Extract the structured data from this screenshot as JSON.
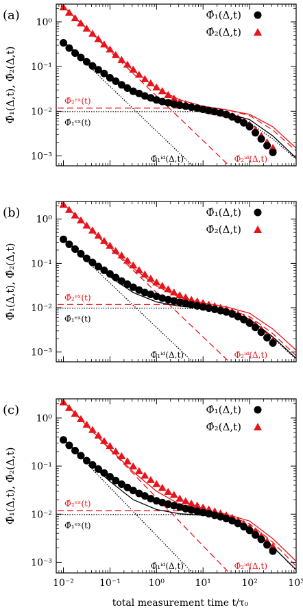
{
  "figure": {
    "xlabel": "total measurement time t/τ₀",
    "ylabel": "Φ̂₁(Δ,t),  Φ̂₂(Δ,t)",
    "xticks": [
      {
        "v": 0.01,
        "label": "10⁻²"
      },
      {
        "v": 0.1,
        "label": "10⁻¹"
      },
      {
        "v": 1,
        "label": "10⁰"
      },
      {
        "v": 10,
        "label": "10¹"
      },
      {
        "v": 100,
        "label": "10²"
      },
      {
        "v": 1000,
        "label": "10³"
      }
    ],
    "yticks": [
      {
        "v": 1,
        "label": "10⁰"
      },
      {
        "v": 0.1,
        "label": "10⁻¹"
      },
      {
        "v": 0.01,
        "label": "10⁻²"
      },
      {
        "v": 0.001,
        "label": "10⁻³"
      }
    ],
    "legend": [
      "Φ̂₁(Δ,t)",
      "Φ̂₂(Δ,t)"
    ],
    "annotations": {
      "phi2_ex": "Φ̂₂ᵉˣ(t)",
      "phi1_ex": "Φ̂₁ᵉˣ(t)",
      "phi1_id": "Φ̂₁ⁱᵈ(Δ,t)",
      "phi2_id": "Φ̂₂ⁱᵈ(Δ,t)"
    },
    "colors": {
      "series1": "#000000",
      "series2": "#e8141b"
    }
  },
  "chart_data": [
    {
      "panel_label": "(a)",
      "type": "scatter",
      "xscale": "log",
      "yscale": "log",
      "xlim": [
        0.007,
        1000
      ],
      "ylim": [
        0.0006,
        2.5
      ],
      "series": [
        {
          "name": "Φ̂₁(Δ,t)",
          "marker": "circle",
          "color": "#000000",
          "x": [
            0.01,
            0.0133,
            0.0178,
            0.0237,
            0.0316,
            0.0422,
            0.0562,
            0.075,
            0.1,
            0.133,
            0.178,
            0.237,
            0.316,
            0.422,
            0.562,
            0.75,
            1,
            1.33,
            1.78,
            2.37,
            3.16,
            4.22,
            5.62,
            7.5,
            10,
            13.3,
            17.8,
            23.7,
            31.6,
            42.2,
            56.2,
            75,
            100,
            133,
            178,
            237,
            316
          ],
          "y": [
            0.34,
            0.26,
            0.2,
            0.16,
            0.128,
            0.103,
            0.085,
            0.07,
            0.056,
            0.047,
            0.039,
            0.033,
            0.028,
            0.025,
            0.022,
            0.02,
            0.018,
            0.0165,
            0.0155,
            0.0145,
            0.0136,
            0.013,
            0.0123,
            0.0117,
            0.011,
            0.0104,
            0.0098,
            0.0092,
            0.0085,
            0.0075,
            0.0065,
            0.0055,
            0.0045,
            0.0033,
            0.0024,
            0.0017,
            0.0012
          ]
        },
        {
          "name": "Φ̂₂(Δ,t)",
          "marker": "triangle",
          "color": "#e8141b",
          "x": [
            0.01,
            0.0133,
            0.0178,
            0.0237,
            0.0316,
            0.0422,
            0.0562,
            0.075,
            0.1,
            0.133,
            0.178,
            0.237,
            0.316,
            0.422,
            0.562,
            0.75,
            1,
            1.33,
            1.78,
            2.37,
            3.16,
            4.22,
            5.62,
            7.5,
            10,
            13.3,
            17.8,
            23.7,
            31.6,
            42.2,
            56.2,
            75,
            100,
            133,
            178,
            237,
            316
          ],
          "y": [
            2.1,
            1.6,
            1.2,
            0.92,
            0.7,
            0.54,
            0.41,
            0.31,
            0.24,
            0.18,
            0.14,
            0.11,
            0.085,
            0.065,
            0.052,
            0.042,
            0.034,
            0.028,
            0.023,
            0.019,
            0.016,
            0.0145,
            0.013,
            0.012,
            0.011,
            0.0103,
            0.0096,
            0.009,
            0.0085,
            0.0078,
            0.007,
            0.006,
            0.005,
            0.0038,
            0.0028,
            0.002,
            0.0015
          ]
        }
      ],
      "curves": {
        "phi1": {
          "x": [
            0.01,
            0.0316,
            0.1,
            0.316,
            1,
            3.16,
            10,
            31.6,
            100,
            316,
            1000
          ],
          "y": [
            0.36,
            0.135,
            0.052,
            0.025,
            0.0155,
            0.012,
            0.0105,
            0.009,
            0.0065,
            0.0028,
            0.0009
          ]
        },
        "phi2": {
          "x": [
            0.01,
            0.0316,
            0.1,
            0.316,
            1,
            3.16,
            10,
            31.6,
            100,
            316,
            1000
          ],
          "y": [
            2.2,
            0.72,
            0.24,
            0.082,
            0.033,
            0.018,
            0.013,
            0.0108,
            0.0085,
            0.0045,
            0.0015
          ]
        },
        "phi1_id": {
          "x": [
            0.01,
            8
          ],
          "y": [
            0.36,
            0.00045
          ]
        },
        "phi2_id": {
          "x": [
            0.01,
            100
          ],
          "y": [
            2.2,
            0.00022
          ]
        },
        "phi1_ex": {
          "x": [
            0.0075,
            10,
            30,
            100,
            316,
            1000
          ],
          "y": [
            0.0098,
            0.0098,
            0.0088,
            0.0055,
            0.0024,
            0.00085
          ]
        },
        "phi2_ex": {
          "x": [
            0.0075,
            10,
            30,
            100,
            316,
            1000
          ],
          "y": [
            0.0118,
            0.0118,
            0.011,
            0.008,
            0.0038,
            0.0013
          ]
        }
      }
    },
    {
      "panel_label": "(b)",
      "type": "scatter",
      "xscale": "log",
      "yscale": "log",
      "xlim": [
        0.007,
        1000
      ],
      "ylim": [
        0.0006,
        2.5
      ],
      "series": [
        {
          "name": "Φ̂₁(Δ,t)",
          "marker": "circle",
          "color": "#000000",
          "x": [
            0.01,
            0.0133,
            0.0178,
            0.0237,
            0.0316,
            0.0422,
            0.0562,
            0.075,
            0.1,
            0.133,
            0.178,
            0.237,
            0.316,
            0.422,
            0.562,
            0.75,
            1,
            1.33,
            1.78,
            2.37,
            3.16,
            4.22,
            5.62,
            7.5,
            10,
            13.3,
            17.8,
            23.7,
            31.6,
            42.2,
            56.2,
            75,
            100,
            133,
            178,
            237,
            316
          ],
          "y": [
            0.35,
            0.27,
            0.21,
            0.165,
            0.13,
            0.105,
            0.085,
            0.07,
            0.058,
            0.048,
            0.04,
            0.034,
            0.029,
            0.025,
            0.022,
            0.02,
            0.018,
            0.0165,
            0.0152,
            0.0142,
            0.0133,
            0.0125,
            0.0117,
            0.011,
            0.0104,
            0.0098,
            0.0092,
            0.0086,
            0.008,
            0.0072,
            0.0063,
            0.0054,
            0.0045,
            0.0036,
            0.0028,
            0.0021,
            0.0016
          ]
        },
        {
          "name": "Φ̂₂(Δ,t)",
          "marker": "triangle",
          "color": "#e8141b",
          "x": [
            0.01,
            0.0133,
            0.0178,
            0.0237,
            0.0316,
            0.0422,
            0.0562,
            0.075,
            0.1,
            0.133,
            0.178,
            0.237,
            0.316,
            0.422,
            0.562,
            0.75,
            1,
            1.33,
            1.78,
            2.37,
            3.16,
            4.22,
            5.62,
            7.5,
            10,
            13.3,
            17.8,
            23.7,
            31.6,
            42.2,
            56.2,
            75,
            100,
            133,
            178,
            237,
            316
          ],
          "y": [
            2.1,
            1.6,
            1.2,
            0.93,
            0.71,
            0.55,
            0.42,
            0.32,
            0.25,
            0.19,
            0.15,
            0.115,
            0.09,
            0.07,
            0.056,
            0.045,
            0.037,
            0.031,
            0.026,
            0.022,
            0.019,
            0.017,
            0.015,
            0.0138,
            0.0127,
            0.0117,
            0.0108,
            0.0099,
            0.009,
            0.0081,
            0.0071,
            0.006,
            0.005,
            0.0041,
            0.0032,
            0.0024,
            0.0018
          ]
        }
      ],
      "curves": {
        "phi1": {
          "x": [
            0.01,
            0.0316,
            0.1,
            0.316,
            1,
            3.16,
            10,
            31.6,
            100,
            316,
            1000
          ],
          "y": [
            0.36,
            0.13,
            0.05,
            0.022,
            0.0135,
            0.0108,
            0.0098,
            0.0085,
            0.0055,
            0.0022,
            0.00072
          ]
        },
        "phi2": {
          "x": [
            0.01,
            0.0316,
            0.1,
            0.316,
            1,
            3.16,
            10,
            31.6,
            100,
            316,
            1000
          ],
          "y": [
            2.2,
            0.7,
            0.23,
            0.078,
            0.031,
            0.017,
            0.0128,
            0.0105,
            0.0075,
            0.0033,
            0.0011
          ]
        },
        "phi1_id": {
          "x": [
            0.01,
            8
          ],
          "y": [
            0.36,
            0.00045
          ]
        },
        "phi2_id": {
          "x": [
            0.01,
            100
          ],
          "y": [
            2.2,
            0.00022
          ]
        },
        "phi1_ex": {
          "x": [
            0.0075,
            3,
            10,
            30,
            100,
            316,
            1000
          ],
          "y": [
            0.0098,
            0.0098,
            0.0095,
            0.0082,
            0.0052,
            0.0021,
            0.00068
          ]
        },
        "phi2_ex": {
          "x": [
            0.0075,
            3,
            10,
            30,
            100,
            316,
            1000
          ],
          "y": [
            0.0118,
            0.0118,
            0.0114,
            0.0098,
            0.0063,
            0.0026,
            0.00083
          ]
        }
      }
    },
    {
      "panel_label": "(c)",
      "type": "scatter",
      "xscale": "log",
      "yscale": "log",
      "xlim": [
        0.007,
        1000
      ],
      "ylim": [
        0.0006,
        2.5
      ],
      "series": [
        {
          "name": "Φ̂₁(Δ,t)",
          "marker": "circle",
          "color": "#000000",
          "x": [
            0.01,
            0.0133,
            0.0178,
            0.0237,
            0.0316,
            0.0422,
            0.0562,
            0.075,
            0.1,
            0.133,
            0.178,
            0.237,
            0.316,
            0.422,
            0.562,
            0.75,
            1,
            1.33,
            1.78,
            2.37,
            3.16,
            4.22,
            5.62,
            7.5,
            10,
            13.3,
            17.8,
            23.7,
            31.6,
            42.2,
            56.2,
            75,
            100,
            133,
            178,
            237,
            316
          ],
          "y": [
            0.35,
            0.27,
            0.21,
            0.165,
            0.13,
            0.106,
            0.087,
            0.072,
            0.06,
            0.05,
            0.042,
            0.036,
            0.031,
            0.027,
            0.024,
            0.021,
            0.019,
            0.0175,
            0.0162,
            0.015,
            0.014,
            0.013,
            0.0122,
            0.0115,
            0.0108,
            0.0102,
            0.0095,
            0.0088,
            0.0081,
            0.0073,
            0.0064,
            0.0055,
            0.0046,
            0.0037,
            0.003,
            0.0023,
            0.0017
          ]
        },
        {
          "name": "Φ̂₂(Δ,t)",
          "marker": "triangle",
          "color": "#e8141b",
          "x": [
            0.01,
            0.0133,
            0.0178,
            0.0237,
            0.0316,
            0.0422,
            0.0562,
            0.075,
            0.1,
            0.133,
            0.178,
            0.237,
            0.316,
            0.422,
            0.562,
            0.75,
            1,
            1.33,
            1.78,
            2.37,
            3.16,
            4.22,
            5.62,
            7.5,
            10,
            13.3,
            17.8,
            23.7,
            31.6,
            42.2,
            56.2,
            75,
            100,
            133,
            178,
            237,
            316
          ],
          "y": [
            2.1,
            1.6,
            1.22,
            0.94,
            0.72,
            0.56,
            0.43,
            0.33,
            0.26,
            0.2,
            0.16,
            0.125,
            0.098,
            0.078,
            0.063,
            0.051,
            0.042,
            0.035,
            0.029,
            0.025,
            0.021,
            0.0185,
            0.0165,
            0.015,
            0.0137,
            0.0125,
            0.0114,
            0.0104,
            0.0094,
            0.0084,
            0.0074,
            0.0063,
            0.0053,
            0.0044,
            0.0035,
            0.0027,
            0.0021
          ]
        }
      ],
      "curves": {
        "phi1": {
          "x": [
            0.01,
            0.0316,
            0.1,
            0.316,
            1,
            3.16,
            10,
            31.6,
            100,
            316,
            1000
          ],
          "y": [
            0.36,
            0.13,
            0.048,
            0.02,
            0.0125,
            0.0102,
            0.0095,
            0.0082,
            0.0053,
            0.0021,
            0.0007
          ]
        },
        "phi2": {
          "x": [
            0.01,
            0.0316,
            0.1,
            0.316,
            1,
            3.16,
            10,
            31.6,
            100,
            316,
            1000
          ],
          "y": [
            2.2,
            0.7,
            0.23,
            0.076,
            0.03,
            0.016,
            0.0122,
            0.01,
            0.0072,
            0.0031,
            0.00105
          ]
        },
        "phi1_id": {
          "x": [
            0.01,
            8
          ],
          "y": [
            0.36,
            0.00045
          ]
        },
        "phi2_id": {
          "x": [
            0.01,
            100
          ],
          "y": [
            2.2,
            0.00022
          ]
        },
        "phi1_ex": {
          "x": [
            0.0075,
            3,
            10,
            30,
            100,
            316,
            1000
          ],
          "y": [
            0.0098,
            0.0098,
            0.0095,
            0.0082,
            0.0052,
            0.0021,
            0.00068
          ]
        },
        "phi2_ex": {
          "x": [
            0.0075,
            3,
            10,
            30,
            100,
            316,
            1000
          ],
          "y": [
            0.0118,
            0.0118,
            0.0114,
            0.0098,
            0.0063,
            0.0026,
            0.00083
          ]
        }
      }
    }
  ]
}
